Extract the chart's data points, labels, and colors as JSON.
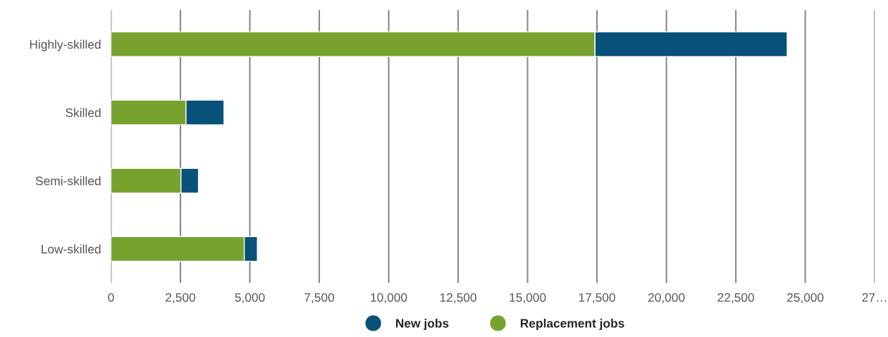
{
  "chart_data": {
    "type": "bar",
    "orientation": "horizontal",
    "stacked": true,
    "categories": [
      "Highly-skilled",
      "Skilled",
      "Semi-skilled",
      "Low-skilled"
    ],
    "series": [
      {
        "name": "Replacement jobs",
        "color": "#78a22f",
        "values": [
          17430,
          2700,
          2520,
          4800
        ]
      },
      {
        "name": "New jobs",
        "color": "#08527a",
        "values": [
          6920,
          1370,
          630,
          470
        ]
      }
    ],
    "xlim": [
      0,
      27500
    ],
    "xticks": [
      {
        "value": 0,
        "label": "0"
      },
      {
        "value": 2500,
        "label": "2,500"
      },
      {
        "value": 5000,
        "label": "5,000"
      },
      {
        "value": 7500,
        "label": "7,500"
      },
      {
        "value": 10000,
        "label": "10,000"
      },
      {
        "value": 12500,
        "label": "12,500"
      },
      {
        "value": 15000,
        "label": "15,000"
      },
      {
        "value": 17500,
        "label": "17,500"
      },
      {
        "value": 20000,
        "label": "20,000"
      },
      {
        "value": 22500,
        "label": "22,500"
      },
      {
        "value": 25000,
        "label": "25,000"
      },
      {
        "value": 27500,
        "label": "27…"
      }
    ],
    "grid": "x",
    "legend": "bottom",
    "marker": "circle"
  }
}
